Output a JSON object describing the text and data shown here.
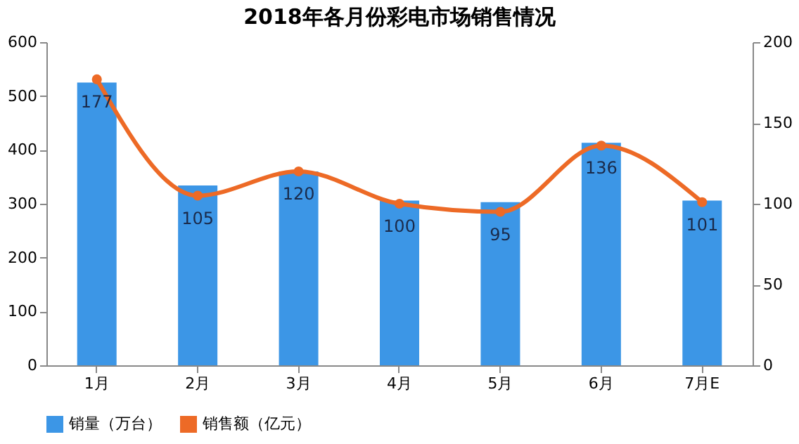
{
  "chart_data": {
    "type": "bar",
    "title": "2018年各月份彩电市场销售情况",
    "categories": [
      "1月",
      "2月",
      "3月",
      "4月",
      "5月",
      "6月",
      "7月E"
    ],
    "series": [
      {
        "name": "销量（万台）",
        "color": "#3c96e6",
        "values": [
          525,
          334,
          360,
          306,
          303,
          413,
          306
        ]
      },
      {
        "name": "销售额（亿元）",
        "color": "#ed6a26",
        "type": "line",
        "axis": "y2",
        "marker": "circle",
        "data_labels": true,
        "values": [
          177,
          105,
          120,
          100,
          95,
          136,
          101
        ]
      }
    ],
    "ylim": [
      0,
      600
    ],
    "yticks": [
      0,
      100,
      200,
      300,
      400,
      500,
      600
    ],
    "y2lim": [
      0,
      200
    ],
    "y2ticks": [
      0,
      50,
      100,
      150,
      200
    ],
    "grid": false,
    "legend": "bottom"
  }
}
